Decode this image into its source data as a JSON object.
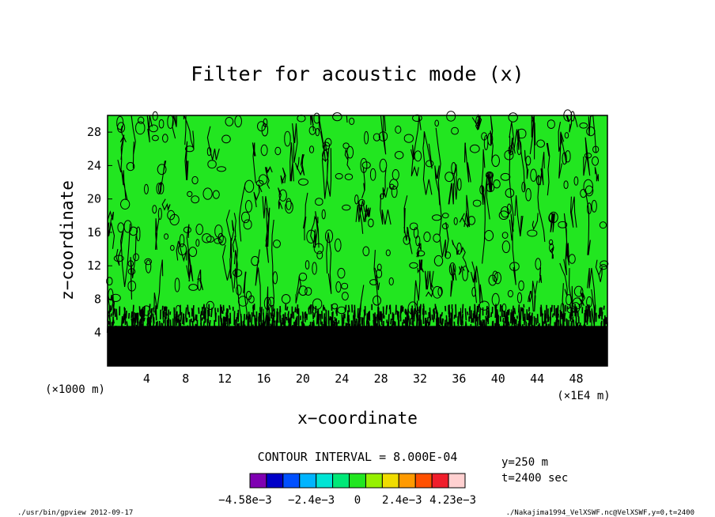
{
  "chart_data": {
    "type": "heatmap",
    "title": "Filter for acoustic mode (x)",
    "xlabel": "x−coordinate",
    "ylabel": "z−coordinate",
    "x_unit_left": "(×1000 m)",
    "x_unit_right": "(×1E4 m)",
    "xticks": [
      "4",
      "8",
      "12",
      "16",
      "20",
      "24",
      "28",
      "32",
      "36",
      "40",
      "44",
      "48"
    ],
    "yticks": [
      "4",
      "8",
      "12",
      "16",
      "20",
      "24",
      "28"
    ],
    "xlim": [
      0,
      51.2
    ],
    "ylim": [
      0,
      30
    ],
    "grid": false,
    "contour_interval": "CONTOUR INTERVAL = 8.000E-04",
    "colorbar": {
      "colors": [
        "#7f00b2",
        "#0000c8",
        "#0050ff",
        "#00b4ff",
        "#00e4d4",
        "#00e878",
        "#22e620",
        "#96f000",
        "#f0dc00",
        "#ff9a00",
        "#ff5000",
        "#f01e2c",
        "#ffd0d0"
      ],
      "labels": [
        "−4.58e−3",
        "−2.4e−3",
        "0",
        "2.4e−3",
        "4.23e−3"
      ]
    },
    "annotations": {
      "y_value": "y=250  m",
      "t_value": "t=2400  sec",
      "footer_left": "./usr/bin/gpview  2012-09-17",
      "footer_right": "./Nakajima1994_VelXSWF.nc@VelXSWF,y=0,t=2400"
    },
    "field": {
      "background": "#22e620",
      "noise_color": "#000000",
      "dense_band_top_z": 6.5
    }
  }
}
